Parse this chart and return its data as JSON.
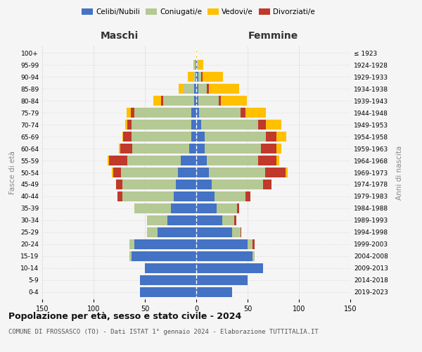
{
  "age_groups": [
    "0-4",
    "5-9",
    "10-14",
    "15-19",
    "20-24",
    "25-29",
    "30-34",
    "35-39",
    "40-44",
    "45-49",
    "50-54",
    "55-59",
    "60-64",
    "65-69",
    "70-74",
    "75-79",
    "80-84",
    "85-89",
    "90-94",
    "95-99",
    "100+"
  ],
  "birth_years": [
    "2019-2023",
    "2014-2018",
    "2009-2013",
    "2004-2008",
    "1999-2003",
    "1994-1998",
    "1989-1993",
    "1984-1988",
    "1979-1983",
    "1974-1978",
    "1969-1973",
    "1964-1968",
    "1959-1963",
    "1954-1958",
    "1949-1953",
    "1944-1948",
    "1939-1943",
    "1934-1938",
    "1929-1933",
    "1924-1928",
    "≤ 1923"
  ],
  "maschi": {
    "celibi": [
      55,
      55,
      50,
      63,
      60,
      38,
      28,
      25,
      22,
      20,
      18,
      15,
      7,
      5,
      5,
      5,
      2,
      2,
      1,
      1,
      0
    ],
    "coniugati": [
      0,
      0,
      0,
      2,
      5,
      10,
      20,
      35,
      50,
      52,
      55,
      52,
      55,
      58,
      58,
      55,
      30,
      10,
      2,
      1,
      0
    ],
    "vedovi": [
      0,
      0,
      0,
      0,
      0,
      0,
      0,
      0,
      0,
      0,
      1,
      1,
      1,
      1,
      2,
      4,
      8,
      5,
      5,
      1,
      0
    ],
    "divorziati": [
      0,
      0,
      0,
      0,
      0,
      0,
      0,
      0,
      5,
      6,
      8,
      18,
      12,
      8,
      4,
      4,
      2,
      0,
      0,
      0,
      0
    ]
  },
  "femmine": {
    "nubili": [
      35,
      50,
      65,
      55,
      50,
      35,
      25,
      20,
      18,
      15,
      12,
      10,
      8,
      8,
      5,
      3,
      2,
      2,
      2,
      1,
      0
    ],
    "coniugate": [
      0,
      0,
      0,
      2,
      5,
      8,
      12,
      20,
      30,
      50,
      55,
      50,
      55,
      60,
      55,
      40,
      20,
      8,
      3,
      1,
      0
    ],
    "vedove": [
      0,
      0,
      0,
      0,
      0,
      0,
      0,
      0,
      0,
      0,
      2,
      3,
      5,
      10,
      15,
      20,
      25,
      30,
      20,
      5,
      1
    ],
    "divorziate": [
      0,
      0,
      0,
      0,
      2,
      1,
      2,
      2,
      5,
      8,
      20,
      18,
      15,
      10,
      8,
      5,
      2,
      2,
      1,
      0,
      0
    ]
  },
  "colors": {
    "celibi": "#4472c4",
    "coniugati": "#b5c994",
    "vedovi": "#ffc000",
    "divorziati": "#c0392b"
  },
  "xlim": 150,
  "title": "Popolazione per età, sesso e stato civile - 2024",
  "subtitle": "COMUNE DI FROSSASCO (TO) - Dati ISTAT 1° gennaio 2024 - Elaborazione TUTTITALIA.IT",
  "xlabel_left": "Maschi",
  "xlabel_right": "Femmine",
  "ylabel_left": "Fasce di età",
  "ylabel_right": "Anni di nascita",
  "bg_color": "#f5f5f5",
  "grid_color": "#cccccc"
}
